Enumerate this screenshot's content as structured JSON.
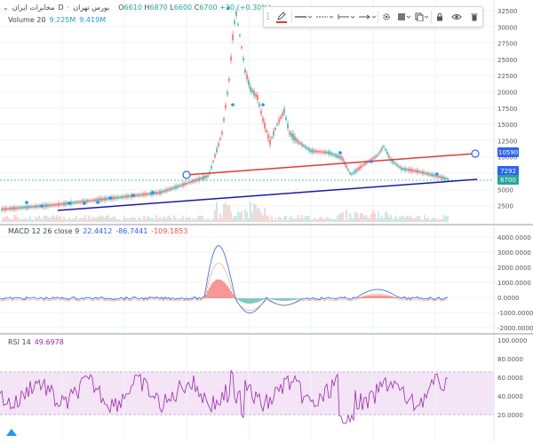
{
  "header": {
    "symbol_name": "مخابرات ایران",
    "interval": "D",
    "exchange": "بورس تهران",
    "open_label": "O",
    "open": "6610",
    "high_label": "H",
    "high": "6870",
    "low_label": "L",
    "low": "6600",
    "close_label": "C",
    "close": "6700",
    "change": "+20 (+0.30%)"
  },
  "volume": {
    "label": "Volume 20",
    "value1": "9.225M",
    "value2": "9.419M"
  },
  "macd": {
    "label": "MACD 12 26 close 9",
    "value1": "22.4412",
    "value2": "-86.7441",
    "value3": "-109.1853",
    "axis_ticks": [
      "4000.0000",
      "3000.0000",
      "2000.0000",
      "1000.0000",
      "0.0000",
      "-1000.0000",
      "-2000.0000"
    ]
  },
  "rsi": {
    "label": "RSI 14",
    "value": "49.6978",
    "axis_ticks": [
      "100.0000",
      "80.0000",
      "60.0000",
      "40.0000",
      "20.0000"
    ]
  },
  "price_axis": {
    "ticks": [
      "32500",
      "30000",
      "27500",
      "25000",
      "22500",
      "20000",
      "17500",
      "15000",
      "12500",
      "10000",
      "7500",
      "5000",
      "2500"
    ],
    "badges": [
      {
        "text": "10590",
        "color": "#2962ff"
      },
      {
        "text": "7292",
        "color": "#2962ff"
      },
      {
        "text": "6700",
        "color": "#26a69a"
      }
    ]
  },
  "colors": {
    "up": "#26a69a",
    "down": "#ef5350",
    "trendline_red": "#e53935",
    "trendline_blue": "#1a1aa6",
    "rsi_line": "#9c27b0",
    "rsi_band": "#f3e5f5",
    "macd_line": "#2962ff",
    "macd_signal": "#ff6d00"
  },
  "toolbar": {
    "icons": [
      "pencil-icon",
      "line-style-icon",
      "line-width-icon",
      "line-ends-icon",
      "settings-icon",
      "template-icon",
      "clone-icon",
      "lock-icon",
      "visibility-icon",
      "delete-icon"
    ]
  }
}
